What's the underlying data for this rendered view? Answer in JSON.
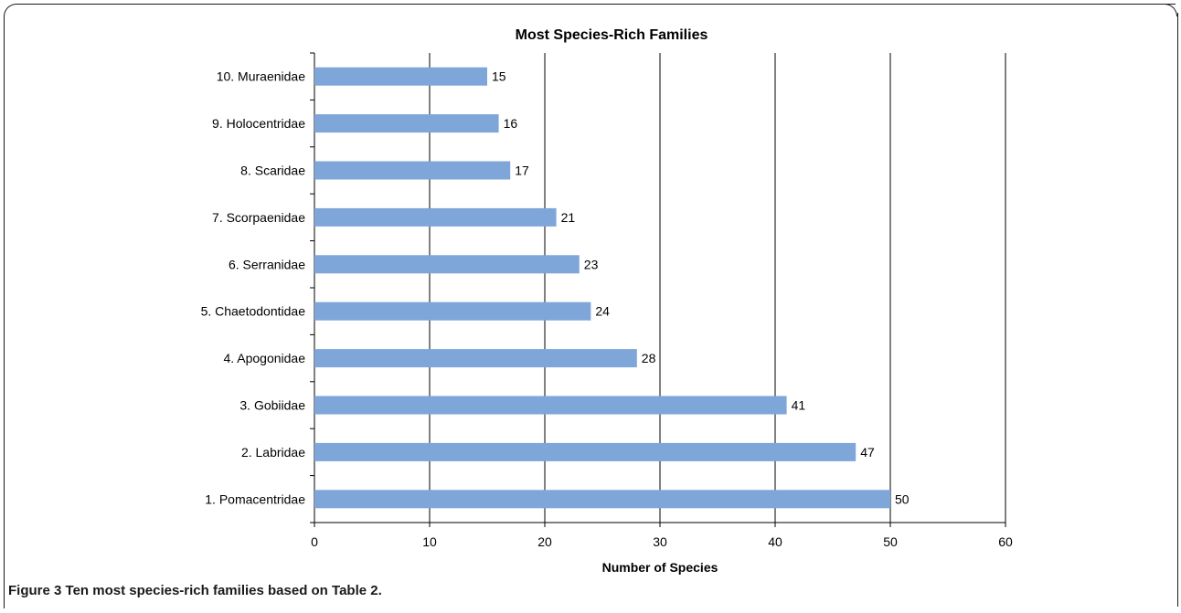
{
  "caption": {
    "label": "Figure 3",
    "text": "Ten most species-rich families based on Table 2."
  },
  "chart_data": {
    "type": "bar",
    "orientation": "horizontal",
    "title": "Most Species-Rich Families",
    "xlabel": "Number of Species",
    "ylabel": "",
    "xlim": [
      0,
      60
    ],
    "x_ticks": [
      0,
      10,
      20,
      30,
      40,
      50,
      60
    ],
    "grid": true,
    "legend": "none",
    "bar_color": "#7ea6d8",
    "categories": [
      "10. Muraenidae",
      "9. Holocentridae",
      "8. Scaridae",
      "7. Scorpaenidae",
      "6. Serranidae",
      "5. Chaetodontidae",
      "4. Apogonidae",
      "3. Gobiidae",
      "2. Labridae",
      "1. Pomacentridae"
    ],
    "values": [
      15,
      16,
      17,
      21,
      23,
      24,
      28,
      41,
      47,
      50
    ]
  }
}
